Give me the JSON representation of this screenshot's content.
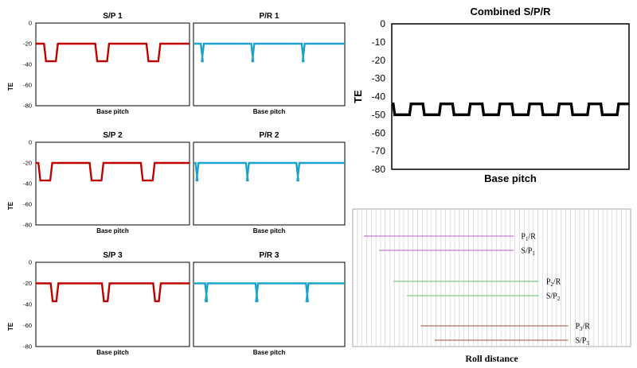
{
  "chart_data": [
    {
      "type": "line",
      "title": "S/P 1",
      "xlabel": "Base pitch",
      "ylabel": "TE",
      "ylim": [
        -80,
        0
      ],
      "yticks": [
        "0",
        "-20",
        "-40",
        "-60",
        "-80"
      ],
      "color": "#c00000",
      "high": -20,
      "low": -37,
      "phase": 0.16,
      "duty": 0.27,
      "periods": 3
    },
    {
      "type": "line",
      "title": "P/R 1",
      "xlabel": "Base pitch",
      "ylabel": "",
      "ylim": [
        -80,
        0
      ],
      "yticks": [],
      "color": "#1aa3cc",
      "high": -20,
      "low": -37,
      "phase": 0.145,
      "duty": 0.06,
      "periods": 3
    },
    {
      "type": "line",
      "title": "S/P 2",
      "xlabel": "Base pitch",
      "ylabel": "TE",
      "ylim": [
        -80,
        0
      ],
      "yticks": [
        "0",
        "-20",
        "-40",
        "-60",
        "-80"
      ],
      "color": "#c00000",
      "high": -20,
      "low": -37,
      "phase": 0.05,
      "duty": 0.27,
      "periods": 3
    },
    {
      "type": "line",
      "title": "P/R 2",
      "xlabel": "Base pitch",
      "ylabel": "",
      "ylim": [
        -80,
        0
      ],
      "yticks": [],
      "color": "#1aa3cc",
      "high": -20,
      "low": -37,
      "phase": 0.04,
      "duty": 0.06,
      "periods": 3
    },
    {
      "type": "line",
      "title": "S/P 3",
      "xlabel": "Base pitch",
      "ylabel": "TE",
      "ylim": [
        -80,
        0
      ],
      "yticks": [
        "0",
        "-20",
        "-40",
        "-60",
        "-80"
      ],
      "color": "#c00000",
      "high": -20,
      "low": -37,
      "phase": 0.29,
      "duty": 0.15,
      "periods": 3
    },
    {
      "type": "line",
      "title": "P/R 3",
      "xlabel": "Base pitch",
      "ylabel": "",
      "ylim": [
        -80,
        0
      ],
      "yticks": [],
      "color": "#1aa3cc",
      "high": -20,
      "low": -37,
      "phase": 0.23,
      "duty": 0.05,
      "periods": 3
    },
    {
      "type": "line",
      "title": "Combined S/P/R",
      "xlabel": "Base pitch",
      "ylabel": "TE",
      "ylim": [
        -80,
        0
      ],
      "yticks": [
        "0",
        "-10",
        "-20",
        "-30",
        "-40",
        "-50",
        "-60",
        "-70",
        "-80"
      ],
      "color": "#000000",
      "high": -44,
      "low": -50,
      "phase": 0.05,
      "duty": 0.6,
      "periods": 8
    },
    {
      "type": "line",
      "title": "",
      "xlabel": "Roll distance",
      "ylabel": "",
      "bars": [
        {
          "label": "P1/R",
          "sub": "1",
          "main": "P",
          "rest": "/R",
          "color": "#c080c8",
          "start": 0.04,
          "end": 0.58
        },
        {
          "label": "S/P1",
          "sub": "1",
          "main": "S/P",
          "rest": "",
          "color": "#c080c8",
          "start": 0.095,
          "end": 0.58
        },
        {
          "label": "P2/R",
          "sub": "2",
          "main": "P",
          "rest": "/R",
          "color": "#80cc80",
          "start": 0.145,
          "end": 0.67
        },
        {
          "label": "S/P2",
          "sub": "2",
          "main": "S/P",
          "rest": "",
          "color": "#80cc80",
          "start": 0.195,
          "end": 0.67
        },
        {
          "label": "P3/R",
          "sub": "3",
          "main": "P",
          "rest": "/R",
          "color": "#b07060",
          "start": 0.245,
          "end": 0.775
        },
        {
          "label": "S/P3",
          "sub": "3",
          "main": "S/P",
          "rest": "",
          "color": "#b07060",
          "start": 0.295,
          "end": 0.775
        }
      ]
    }
  ]
}
